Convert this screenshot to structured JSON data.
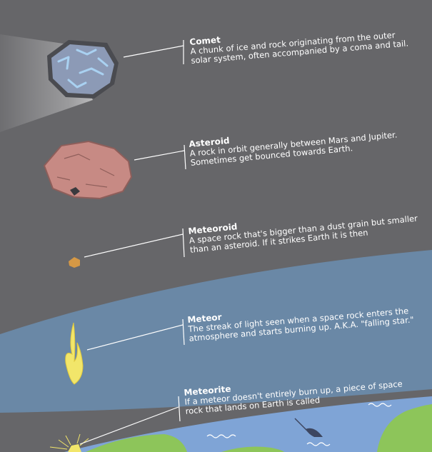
{
  "colors": {
    "background": "#666669",
    "atmosphere": "#6a88a6",
    "ocean": "#7fa4d6",
    "land": "#8dc55a",
    "comet_body": "#8c9ab6",
    "comet_ice": "#a9d1f1",
    "asteroid_body": "#c78a84",
    "meteoroid_body": "#d59845",
    "meteor_flame": "#f2e66a",
    "text": "#ffffff"
  },
  "icons": [
    "comet-icon",
    "asteroid-icon",
    "meteoroid-icon",
    "meteor-flame-icon",
    "meteorite-icon",
    "narwhal-icon",
    "wave-icon"
  ],
  "items": {
    "comet": {
      "title": "Comet",
      "lines": [
        "A chunk of ice and rock originating from the outer",
        "solar system, often  accompanied by a coma and tail."
      ]
    },
    "asteroid": {
      "title": "Asteroid",
      "lines": [
        "A rock in orbit generally between Mars and Jupiter.",
        "Sometimes                              get bounced towards Earth."
      ]
    },
    "meteoroid": {
      "title": "Meteoroid",
      "lines": [
        "A space rock that's bigger than a dust grain but smaller",
        "than an asteroid. If it strikes Earth it is then"
      ]
    },
    "meteor": {
      "title": "Meteor",
      "lines": [
        "The streak of light seen when a space rock enters the",
        "atmosphere and starts burning up. A.K.A. \"falling star.\""
      ]
    },
    "meteorite": {
      "title": "Meteorite",
      "lines": [
        "If a meteor doesn't entirely burn up, a piece of space",
        "rock that lands on Earth is called"
      ]
    }
  }
}
